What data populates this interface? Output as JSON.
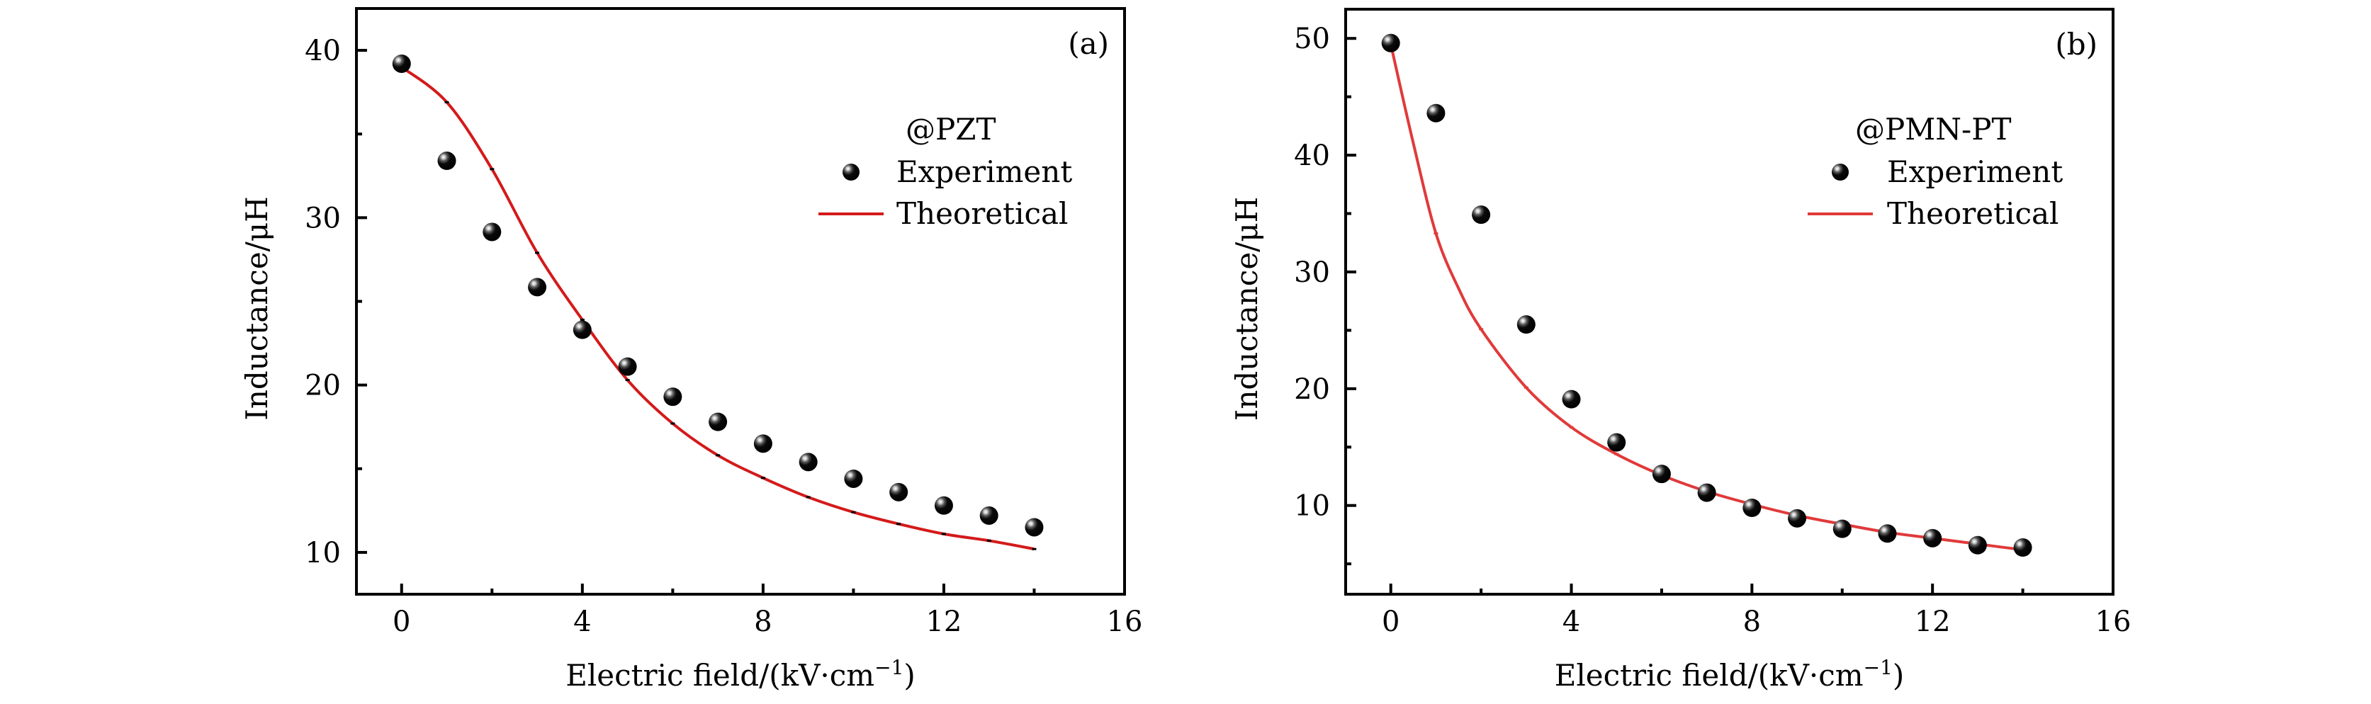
{
  "chart_data": [
    {
      "type": "scatter",
      "panel_label": "(a)",
      "legend_title": "@PZT",
      "legend_position": "top-right",
      "xlabel": "Electric field/(kV·cm",
      "xlabel_sup": "−1",
      "xlabel_close": ")",
      "ylabel": "Inductance/μH",
      "xlim": [
        -1,
        16
      ],
      "ylim": [
        7.5,
        42.5
      ],
      "x_major_ticks": [
        0,
        4,
        8,
        12,
        16
      ],
      "x_minor_ticks": [
        2,
        6,
        10,
        14
      ],
      "x_tick_labels": [
        "0",
        "4",
        "8",
        "12",
        "16"
      ],
      "y_major_ticks": [
        10,
        20,
        30,
        40
      ],
      "y_minor_ticks": [
        15,
        25,
        35
      ],
      "y_tick_labels": [
        "10",
        "20",
        "30",
        "40"
      ],
      "grid": false,
      "series": [
        {
          "name": "Experiment",
          "kind": "scatter",
          "color": "#000000",
          "x": [
            0,
            1,
            2,
            3,
            4,
            5,
            6,
            7,
            8,
            9,
            10,
            11,
            12,
            13,
            14
          ],
          "y": [
            39.2,
            33.4,
            29.15,
            25.85,
            23.3,
            21.1,
            19.3,
            17.8,
            16.5,
            15.4,
            14.4,
            13.6,
            12.8,
            12.2,
            11.5
          ]
        },
        {
          "name": "Theoretical",
          "kind": "line",
          "color": "#d41a1a",
          "x": [
            0,
            1,
            2,
            3,
            4,
            5,
            6,
            7,
            8,
            9,
            10,
            11,
            12,
            13,
            14
          ],
          "y": [
            39.0,
            36.9,
            32.9,
            27.9,
            23.9,
            20.3,
            17.7,
            15.8,
            14.45,
            13.3,
            12.4,
            11.7,
            11.1,
            10.7,
            10.2
          ]
        }
      ]
    },
    {
      "type": "scatter",
      "panel_label": "(b)",
      "legend_title": "@PMN-PT",
      "legend_position": "top-right",
      "xlabel": "Electric field/(kV·cm",
      "xlabel_sup": "−1",
      "xlabel_close": ")",
      "ylabel": "Inductance/μH",
      "xlim": [
        -1,
        16
      ],
      "ylim": [
        2.4,
        52.5
      ],
      "x_major_ticks": [
        0,
        4,
        8,
        12,
        16
      ],
      "x_minor_ticks": [
        2,
        6,
        10,
        14
      ],
      "x_tick_labels": [
        "0",
        "4",
        "8",
        "12",
        "16"
      ],
      "y_major_ticks": [
        10,
        20,
        30,
        40,
        50
      ],
      "y_minor_ticks": [
        5,
        15,
        25,
        35,
        45
      ],
      "y_tick_labels": [
        "10",
        "20",
        "30",
        "40",
        "50"
      ],
      "grid": false,
      "series": [
        {
          "name": "Experiment",
          "kind": "scatter",
          "color": "#000000",
          "x": [
            0,
            1,
            2,
            3,
            4,
            5,
            6,
            7,
            8,
            9,
            10,
            11,
            12,
            13,
            14
          ],
          "y": [
            49.6,
            43.6,
            34.9,
            25.5,
            19.1,
            15.4,
            12.7,
            11.1,
            9.8,
            8.9,
            8.0,
            7.6,
            7.2,
            6.6,
            6.4
          ]
        },
        {
          "name": "Theoretical",
          "kind": "line",
          "color": "#e03a3a",
          "x": [
            0,
            0.5,
            1,
            1.5,
            2,
            3,
            4,
            5,
            6,
            7,
            8,
            9,
            10,
            11,
            12,
            13,
            14
          ],
          "y": [
            49.5,
            41.0,
            33.3,
            28.6,
            25.1,
            20.1,
            16.7,
            14.4,
            12.6,
            11.2,
            10.1,
            9.15,
            8.4,
            7.7,
            7.2,
            6.7,
            6.2
          ]
        }
      ]
    }
  ]
}
